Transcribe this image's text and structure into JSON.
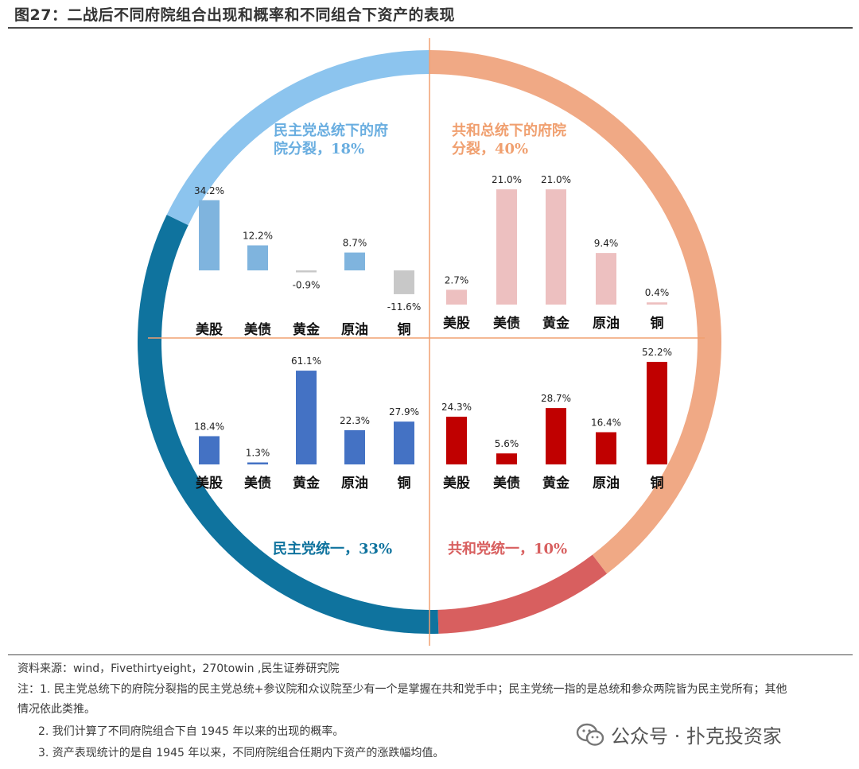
{
  "title": "图27：二战后不同府院组合出现和概率和不同组合下资产的表现",
  "colors": {
    "dem_split": "#8cc4ee",
    "rep_split": "#f0a985",
    "dem_unified": "#0f739e",
    "rep_unified": "#d85f5f",
    "divider": "#f0a070",
    "bar_dem_split": "#7fb4de",
    "bar_dem_split_neg": "#c8c8c8",
    "bar_rep_split": "#edc0c0",
    "bar_dem_unified": "#4472c4",
    "bar_rep_unified": "#c00000",
    "label_dem_split": "#6aaee0",
    "label_rep_split": "#f0a070",
    "label_dem_unified": "#0f739e",
    "label_rep_unified": "#d85f5f"
  },
  "chart_data": {
    "type": "bar",
    "quadrants": [
      {
        "id": "dem_split",
        "label_line1": "民主党总统下的府",
        "label_line2": "院分裂，18%",
        "probability": 18,
        "categories": [
          "美股",
          "美债",
          "黄金",
          "原油",
          "铜"
        ],
        "values": [
          34.2,
          12.2,
          -0.9,
          8.7,
          -11.6
        ],
        "value_labels": [
          "34.2%",
          "12.2%",
          "-0.9%",
          "8.7%",
          "-11.6%"
        ]
      },
      {
        "id": "rep_split",
        "label_line1": "共和总统下的府院",
        "label_line2": "分裂，40%",
        "probability": 40,
        "categories": [
          "美股",
          "美债",
          "黄金",
          "原油",
          "铜"
        ],
        "values": [
          2.7,
          21.0,
          21.0,
          9.4,
          0.4
        ],
        "value_labels": [
          "2.7%",
          "21.0%",
          "21.0%",
          "9.4%",
          "0.4%"
        ]
      },
      {
        "id": "dem_unified",
        "label_line1": "民主党统一，33%",
        "probability": 33,
        "categories": [
          "美股",
          "美债",
          "黄金",
          "原油",
          "铜"
        ],
        "values": [
          18.4,
          1.3,
          61.1,
          22.3,
          27.9
        ],
        "value_labels": [
          "18.4%",
          "1.3%",
          "61.1%",
          "22.3%",
          "27.9%"
        ]
      },
      {
        "id": "rep_unified",
        "label_line1": "共和党统一，10%",
        "probability": 10,
        "categories": [
          "美股",
          "美债",
          "黄金",
          "原油",
          "铜"
        ],
        "values": [
          24.3,
          5.6,
          28.7,
          16.4,
          52.2
        ],
        "value_labels": [
          "24.3%",
          "5.6%",
          "28.7%",
          "16.4%",
          "52.2%"
        ]
      }
    ]
  },
  "notes": {
    "source": "资料来源：wind，Fivethirtyeight，270towin ,民生证券研究院",
    "note1a": "注：1. 民主党总统下的府院分裂指的民主党总统+参议院和众议院至少有一个是掌握在共和党手中；民主党统一指的是总统和参众两院皆为民主党所有；其他",
    "note1b": "情况依此类推。",
    "note2": "2. 我们计算了不同府院组合下自 1945 年以来的出现的概率。",
    "note3": "3. 资产表现统计的是自 1945 年以来，不同府院组合任期内下资产的涨跌幅均值。"
  },
  "watermark": {
    "text": "公众号 · 扑克投资家",
    "icon": "wechat-icon"
  }
}
